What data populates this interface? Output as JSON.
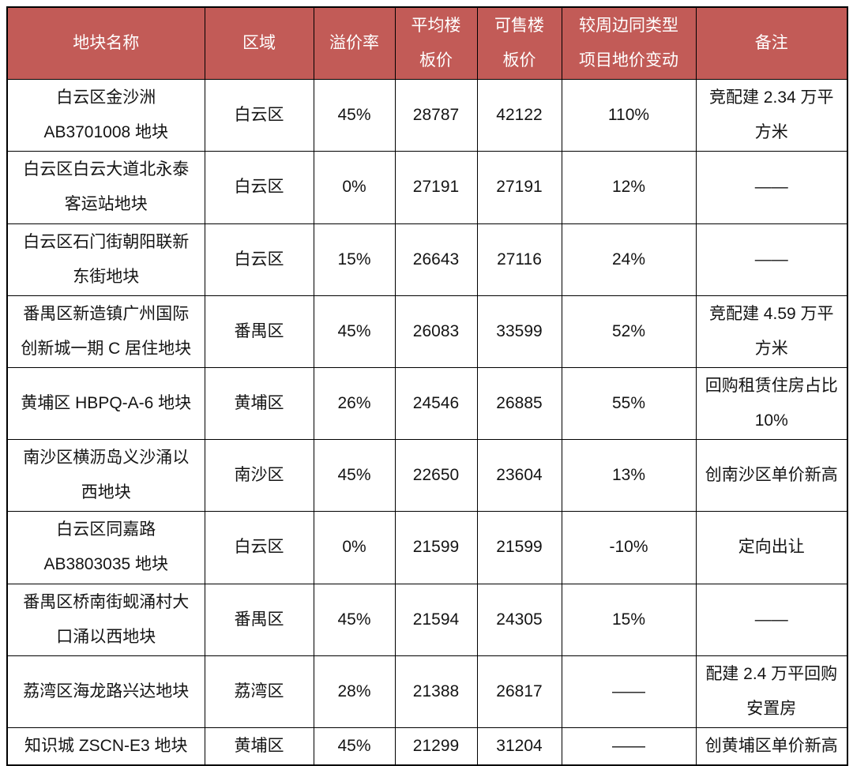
{
  "table": {
    "header_bg_color": "#c25b57",
    "header_text_color": "#ffffff",
    "body_text_color": "#141414",
    "border_color": "#000000",
    "columns": [
      "地块名称",
      "区域",
      "溢价率",
      "平均楼\n板价",
      "可售楼\n板价",
      "较周边同类型\n项目地价变动",
      "备注"
    ],
    "rows": [
      {
        "name": "白云区金沙洲\nAB3701008 地块",
        "district": "白云区",
        "premium_rate": "45%",
        "avg_floor_price": "28787",
        "sellable_floor_price": "42122",
        "price_change": "110%",
        "remark": "竞配建 2.34 万平\n方米"
      },
      {
        "name": "白云区白云大道北永泰\n客运站地块",
        "district": "白云区",
        "premium_rate": "0%",
        "avg_floor_price": "27191",
        "sellable_floor_price": "27191",
        "price_change": "12%",
        "remark": "——"
      },
      {
        "name": "白云区石门街朝阳联新\n东街地块",
        "district": "白云区",
        "premium_rate": "15%",
        "avg_floor_price": "26643",
        "sellable_floor_price": "27116",
        "price_change": "24%",
        "remark": "——"
      },
      {
        "name": "番禺区新造镇广州国际\n创新城一期 C 居住地块",
        "district": "番禺区",
        "premium_rate": "45%",
        "avg_floor_price": "26083",
        "sellable_floor_price": "33599",
        "price_change": "52%",
        "remark": "竞配建 4.59 万平\n方米"
      },
      {
        "name": "黄埔区 HBPQ-A-6 地块",
        "district": "黄埔区",
        "premium_rate": "26%",
        "avg_floor_price": "24546",
        "sellable_floor_price": "26885",
        "price_change": "55%",
        "remark": "回购租赁住房占比\n10%"
      },
      {
        "name": "南沙区横沥岛义沙涌以\n西地块",
        "district": "南沙区",
        "premium_rate": "45%",
        "avg_floor_price": "22650",
        "sellable_floor_price": "23604",
        "price_change": "13%",
        "remark": "创南沙区单价新高"
      },
      {
        "name": "白云区同嘉路\nAB3803035 地块",
        "district": "白云区",
        "premium_rate": "0%",
        "avg_floor_price": "21599",
        "sellable_floor_price": "21599",
        "price_change": "-10%",
        "remark": "定向出让"
      },
      {
        "name": "番禺区桥南街蚬涌村大\n口涌以西地块",
        "district": "番禺区",
        "premium_rate": "45%",
        "avg_floor_price": "21594",
        "sellable_floor_price": "24305",
        "price_change": "15%",
        "remark": "——"
      },
      {
        "name": "荔湾区海龙路兴达地块",
        "district": "荔湾区",
        "premium_rate": "28%",
        "avg_floor_price": "21388",
        "sellable_floor_price": "26817",
        "price_change": "——",
        "remark": "配建 2.4 万平回购\n安置房"
      },
      {
        "name": "知识城 ZSCN-E3 地块",
        "district": "黄埔区",
        "premium_rate": "45%",
        "avg_floor_price": "21299",
        "sellable_floor_price": "31204",
        "price_change": "——",
        "remark": "创黄埔区单价新高"
      }
    ]
  }
}
